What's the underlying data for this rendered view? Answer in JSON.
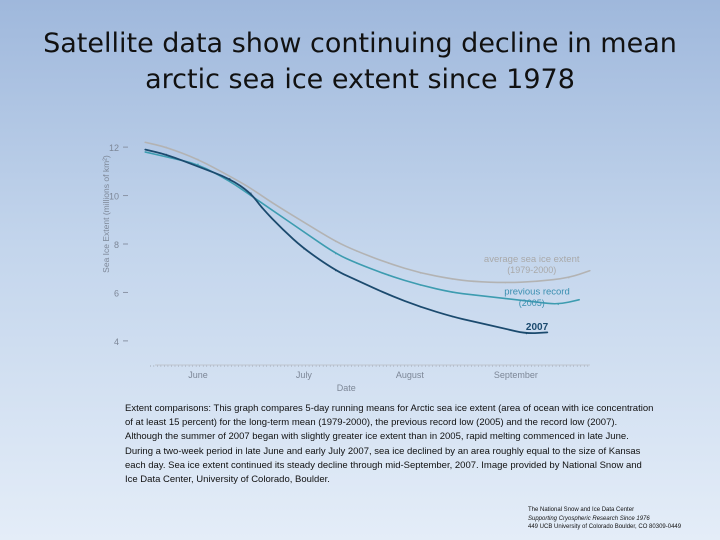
{
  "title": "Satellite data show continuing decline in mean arctic sea ice extent since 1978",
  "chart_data": {
    "type": "line",
    "ylabel": "Sea Ice Extent (millions of km²)",
    "xlabel": "Date",
    "ylim": [
      3.5,
      12.5
    ],
    "yticks": [
      4,
      6,
      8,
      10,
      12
    ],
    "xlim": [
      0,
      4.2
    ],
    "month_ticks": [
      {
        "label": "June",
        "x": 0.5
      },
      {
        "label": "July",
        "x": 1.5
      },
      {
        "label": "August",
        "x": 2.5
      },
      {
        "label": "September",
        "x": 3.5
      }
    ],
    "grid": false,
    "series": [
      {
        "name": "average sea ice extent",
        "name2": "(1979-2000)",
        "color": "#b3b3b3",
        "x": [
          0,
          0.2,
          0.5,
          0.8,
          1.0,
          1.2,
          1.5,
          1.8,
          2.0,
          2.3,
          2.6,
          2.9,
          3.1,
          3.4,
          3.7,
          4.0,
          4.2
        ],
        "y": [
          12.2,
          12.0,
          11.5,
          10.8,
          10.3,
          9.7,
          8.9,
          8.1,
          7.7,
          7.2,
          6.8,
          6.55,
          6.45,
          6.4,
          6.45,
          6.6,
          6.9
        ]
      },
      {
        "name": "previous record",
        "name2": "(2005)",
        "color": "#3d9cb0",
        "x": [
          0,
          0.2,
          0.5,
          0.8,
          1.0,
          1.2,
          1.5,
          1.8,
          2.0,
          2.3,
          2.6,
          2.9,
          3.1,
          3.4,
          3.7,
          3.9,
          4.1
        ],
        "y": [
          11.8,
          11.6,
          11.3,
          10.6,
          10.0,
          9.4,
          8.5,
          7.6,
          7.2,
          6.7,
          6.3,
          6.0,
          5.9,
          5.75,
          5.6,
          5.5,
          5.7
        ]
      },
      {
        "name": "2007",
        "color": "#1b4a6e",
        "x": [
          0,
          0.2,
          0.5,
          0.8,
          1.0,
          1.1,
          1.3,
          1.5,
          1.8,
          2.0,
          2.3,
          2.6,
          2.9,
          3.1,
          3.4,
          3.6,
          3.8
        ],
        "y": [
          11.9,
          11.7,
          11.2,
          10.7,
          10.1,
          9.5,
          8.6,
          7.8,
          6.9,
          6.5,
          5.9,
          5.4,
          5.0,
          4.8,
          4.5,
          4.3,
          4.35
        ]
      }
    ]
  },
  "caption": "Extent comparisons: This graph compares 5-day running means for Arctic sea ice extent (area of ocean with ice concentration of at least 15 percent) for the long-term mean (1979-2000), the previous record low (2005) and the record low (2007). Although the summer of 2007 began with slightly greater ice extent than in 2005, rapid melting commenced in late June. During a two-week period in late June and early July 2007, sea ice declined by an area roughly equal to the size of Kansas each day. Sea ice extent continued its steady decline through mid-September, 2007. Image provided by National Snow and Ice Data Center, University of Colorado, Boulder.",
  "credit": {
    "line1": "The National Snow and Ice Data Center",
    "line2": "Supporting Cryospheric Research Since 1976",
    "line3": "449 UCB University of Colorado  Boulder, CO 80309-0449"
  }
}
